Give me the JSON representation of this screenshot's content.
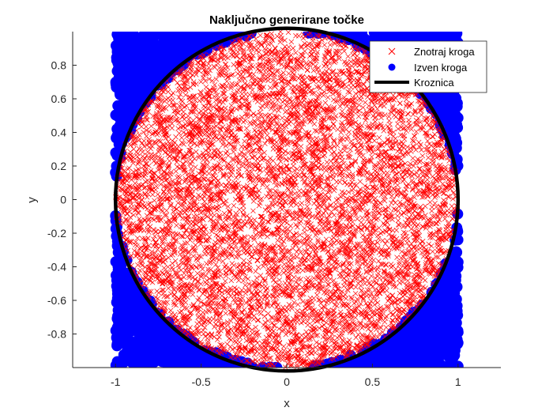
{
  "chart_data": {
    "type": "scatter",
    "title": "Naključno generirane točke",
    "xlabel": "x",
    "ylabel": "y",
    "xlim": [
      -1.25,
      1.25
    ],
    "ylim": [
      -1,
      1
    ],
    "x_ticks": [
      "-1",
      "-0.5",
      "0",
      "0.5",
      "1"
    ],
    "y_ticks": [
      "0.8",
      "0.6",
      "0.4",
      "0.2",
      "0",
      "-0.2",
      "-0.4",
      "-0.6",
      "-0.8"
    ],
    "grid": false,
    "legend_position": "top-right",
    "legend": [
      "Znotraj kroga",
      "Izven kroga",
      "Kroznica"
    ],
    "colors": {
      "inside": "#ff0000",
      "outside": "#0000ff",
      "circle": "#000000"
    },
    "series": [
      {
        "name": "Znotraj kroga",
        "marker": "x",
        "region": "x^2 + y^2 <= 1, points uniformly sampled in [-1,1]x[-1,1]"
      },
      {
        "name": "Izven kroga",
        "marker": "filled-circle",
        "region": "x^2 + y^2 > 1, points uniformly sampled in [-1,1]x[-1,1]"
      },
      {
        "name": "Kroznica",
        "marker": "line",
        "equation": "x^2 + y^2 = 1",
        "center": [
          0,
          0
        ],
        "radius": 1
      }
    ]
  }
}
